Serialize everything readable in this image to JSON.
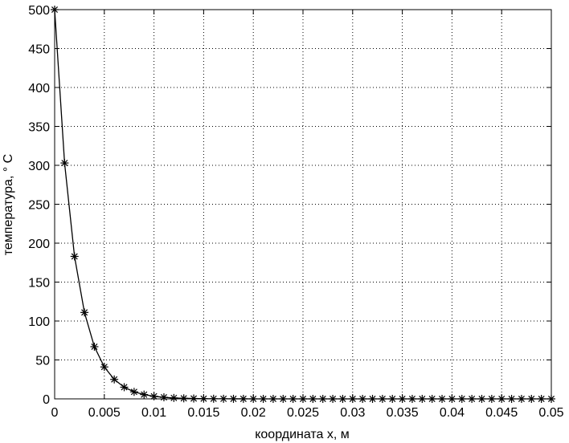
{
  "chart_data": {
    "type": "line",
    "title": "",
    "xlabel": "координата x, м",
    "ylabel": "температура, ° C",
    "xlim": [
      0,
      0.05
    ],
    "ylim": [
      0,
      500
    ],
    "xticks": [
      0,
      0.005,
      0.01,
      0.015,
      0.02,
      0.025,
      0.03,
      0.035,
      0.04,
      0.045,
      0.05
    ],
    "xtick_labels": [
      "0",
      "0.005",
      "0.01",
      "0.015",
      "0.02",
      "0.025",
      "0.03",
      "0.035",
      "0.04",
      "0.045",
      "0.05"
    ],
    "yticks": [
      0,
      50,
      100,
      150,
      200,
      250,
      300,
      350,
      400,
      450,
      500
    ],
    "ytick_labels": [
      "0",
      "50",
      "100",
      "150",
      "200",
      "250",
      "300",
      "350",
      "400",
      "450",
      "500"
    ],
    "grid": true,
    "legend": false,
    "series": [
      {
        "line_color": "#000000",
        "marker": "asterisk",
        "x": [
          0,
          0.001,
          0.002,
          0.003,
          0.004,
          0.005,
          0.006,
          0.007,
          0.008,
          0.009,
          0.01,
          0.011,
          0.012,
          0.013,
          0.014,
          0.015,
          0.016,
          0.017,
          0.018,
          0.019,
          0.02,
          0.021,
          0.022,
          0.023,
          0.024,
          0.025,
          0.026,
          0.027,
          0.028,
          0.029,
          0.03,
          0.031,
          0.032,
          0.033,
          0.034,
          0.035,
          0.036,
          0.037,
          0.038,
          0.039,
          0.04,
          0.041,
          0.042,
          0.043,
          0.044,
          0.045,
          0.046,
          0.047,
          0.048,
          0.049,
          0.05
        ],
        "y": [
          500,
          303,
          183,
          111,
          67,
          41,
          25,
          15,
          9,
          5.5,
          3.3,
          2,
          1.2,
          0.7,
          0.45,
          0.27,
          0.16,
          0.1,
          0.06,
          0.04,
          0.02,
          0.015,
          0.01,
          0.005,
          0.003,
          0.002,
          0.001,
          0,
          0,
          0,
          0,
          0,
          0,
          0,
          0,
          0,
          0,
          0,
          0,
          0,
          0,
          0,
          0,
          0,
          0,
          0,
          0,
          0,
          0,
          0,
          0
        ]
      }
    ]
  }
}
